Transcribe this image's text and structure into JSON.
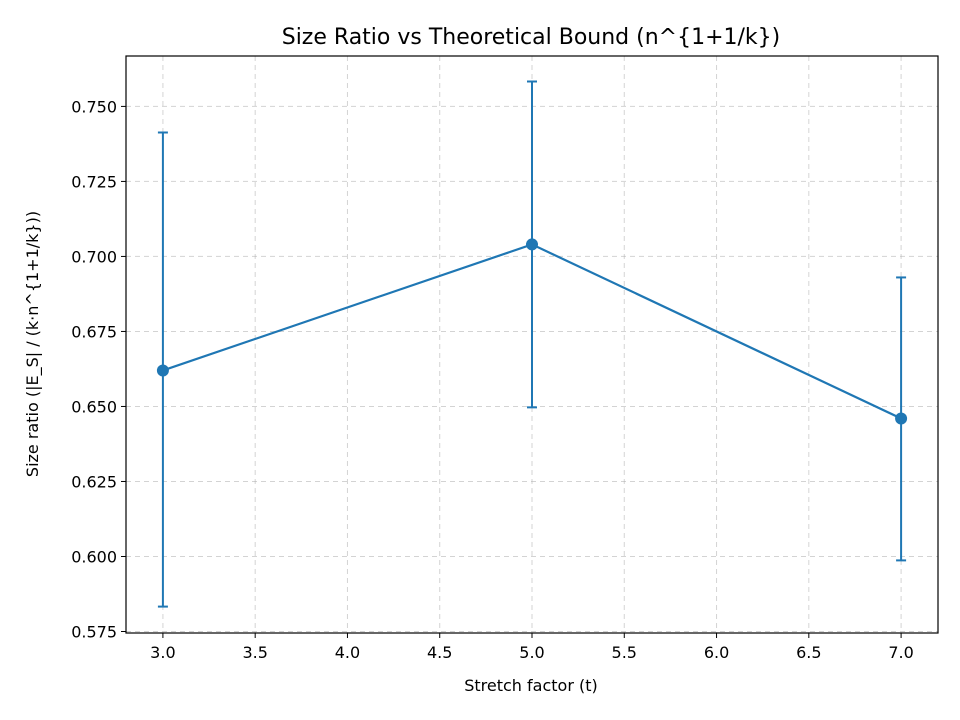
{
  "chart_data": {
    "type": "line",
    "title": "Size Ratio vs Theoretical Bound (n^{1+1/k})",
    "xlabel": "Stretch factor (t)",
    "ylabel": "Size ratio (|E_S| / (k·n^{1+1/k}))",
    "xlim": [
      2.8,
      7.2
    ],
    "ylim": [
      0.5745,
      0.7668
    ],
    "xticks": [
      3.0,
      3.5,
      4.0,
      4.5,
      5.0,
      5.5,
      6.0,
      6.5,
      7.0
    ],
    "xtick_labels": [
      "3.0",
      "3.5",
      "4.0",
      "4.5",
      "5.0",
      "5.5",
      "6.0",
      "6.5",
      "7.0"
    ],
    "yticks": [
      0.575,
      0.6,
      0.625,
      0.65,
      0.675,
      0.7,
      0.725,
      0.75
    ],
    "ytick_labels": [
      "0.575",
      "0.600",
      "0.625",
      "0.650",
      "0.675",
      "0.700",
      "0.725",
      "0.750"
    ],
    "grid": true,
    "series": [
      {
        "x": [
          3,
          5,
          7
        ],
        "y": [
          0.662,
          0.704,
          0.646
        ],
        "yerr_low": [
          0.5833,
          0.6497,
          0.5987
        ],
        "yerr_high": [
          0.7413,
          0.7583,
          0.693
        ],
        "color": "#1f77b4"
      }
    ]
  }
}
